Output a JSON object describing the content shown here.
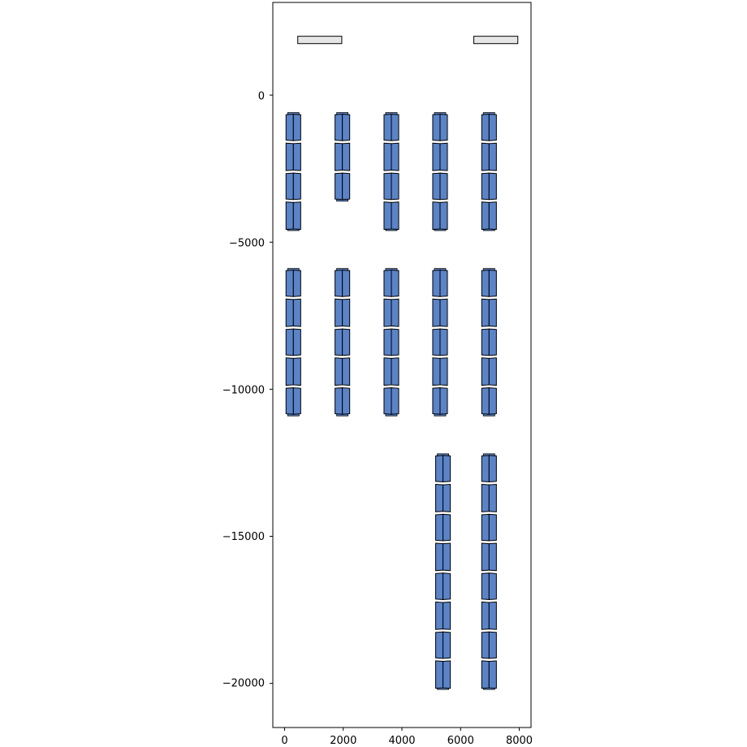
{
  "chart_data": {
    "type": "scatter",
    "title": "",
    "xlabel": "",
    "ylabel": "",
    "xlim": [
      -400,
      8400
    ],
    "ylim": [
      -21500,
      3150
    ],
    "grid": false,
    "x_ticks": [
      0,
      2000,
      4000,
      6000,
      8000
    ],
    "x_tick_labels": [
      "0",
      "2000",
      "4000",
      "6000",
      "8000"
    ],
    "y_ticks": [
      0,
      -5000,
      -10000,
      -15000,
      -20000
    ],
    "y_tick_labels": [
      "0",
      "−5000",
      "−10000",
      "−15000",
      "−20000"
    ],
    "colors": {
      "panel_fill": "#5b84c8",
      "panel_edge": "#000000",
      "bar_fill": "#e6e6e6"
    },
    "bars": [
      {
        "x0": 450,
        "x1": 1950,
        "y0": 1750,
        "y1": 2000
      },
      {
        "x0": 6450,
        "x1": 7950,
        "y0": 1750,
        "y1": 2000
      }
    ],
    "panel_size": {
      "width": 500,
      "height": 900
    },
    "panel_groups": [
      {
        "cx": 300,
        "y_top": -650,
        "rows": 4
      },
      {
        "cx": 1970,
        "y_top": -650,
        "rows": 3
      },
      {
        "cx": 3640,
        "y_top": -650,
        "rows": 4
      },
      {
        "cx": 5300,
        "y_top": -650,
        "rows": 4
      },
      {
        "cx": 6970,
        "y_top": -650,
        "rows": 4
      },
      {
        "cx": 300,
        "y_top": -5950,
        "rows": 5
      },
      {
        "cx": 1970,
        "y_top": -5950,
        "rows": 5
      },
      {
        "cx": 3640,
        "y_top": -5950,
        "rows": 5
      },
      {
        "cx": 5300,
        "y_top": -5950,
        "rows": 5
      },
      {
        "cx": 6970,
        "y_top": -5950,
        "rows": 5
      },
      {
        "cx": 5400,
        "y_top": -12250,
        "rows": 8
      },
      {
        "cx": 6970,
        "y_top": -12250,
        "rows": 8
      }
    ]
  }
}
